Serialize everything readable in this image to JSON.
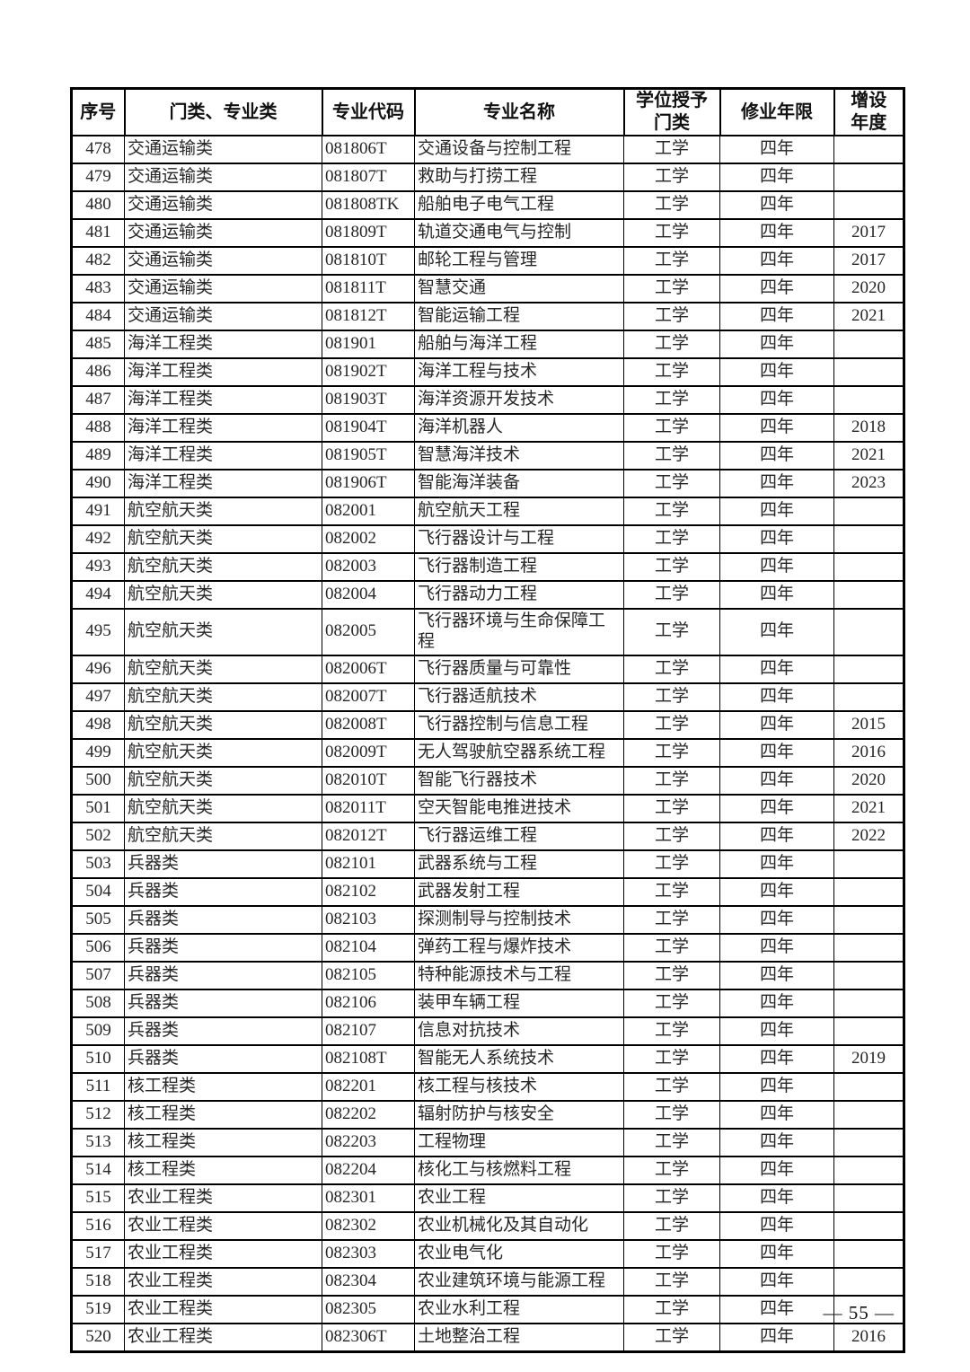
{
  "table": {
    "columns": [
      "序号",
      "门类、专业类",
      "专业代码",
      "专业名称",
      "学位授予\n门类",
      "修业年限",
      "增设\n年度"
    ],
    "rows": [
      [
        "478",
        "交通运输类",
        "081806T",
        "交通设备与控制工程",
        "工学",
        "四年",
        ""
      ],
      [
        "479",
        "交通运输类",
        "081807T",
        "救助与打捞工程",
        "工学",
        "四年",
        ""
      ],
      [
        "480",
        "交通运输类",
        "081808TK",
        "船舶电子电气工程",
        "工学",
        "四年",
        ""
      ],
      [
        "481",
        "交通运输类",
        "081809T",
        "轨道交通电气与控制",
        "工学",
        "四年",
        "2017"
      ],
      [
        "482",
        "交通运输类",
        "081810T",
        "邮轮工程与管理",
        "工学",
        "四年",
        "2017"
      ],
      [
        "483",
        "交通运输类",
        "081811T",
        "智慧交通",
        "工学",
        "四年",
        "2020"
      ],
      [
        "484",
        "交通运输类",
        "081812T",
        "智能运输工程",
        "工学",
        "四年",
        "2021"
      ],
      [
        "485",
        "海洋工程类",
        "081901",
        "船舶与海洋工程",
        "工学",
        "四年",
        ""
      ],
      [
        "486",
        "海洋工程类",
        "081902T",
        "海洋工程与技术",
        "工学",
        "四年",
        ""
      ],
      [
        "487",
        "海洋工程类",
        "081903T",
        "海洋资源开发技术",
        "工学",
        "四年",
        ""
      ],
      [
        "488",
        "海洋工程类",
        "081904T",
        "海洋机器人",
        "工学",
        "四年",
        "2018"
      ],
      [
        "489",
        "海洋工程类",
        "081905T",
        "智慧海洋技术",
        "工学",
        "四年",
        "2021"
      ],
      [
        "490",
        "海洋工程类",
        "081906T",
        "智能海洋装备",
        "工学",
        "四年",
        "2023"
      ],
      [
        "491",
        "航空航天类",
        "082001",
        "航空航天工程",
        "工学",
        "四年",
        ""
      ],
      [
        "492",
        "航空航天类",
        "082002",
        "飞行器设计与工程",
        "工学",
        "四年",
        ""
      ],
      [
        "493",
        "航空航天类",
        "082003",
        "飞行器制造工程",
        "工学",
        "四年",
        ""
      ],
      [
        "494",
        "航空航天类",
        "082004",
        "飞行器动力工程",
        "工学",
        "四年",
        ""
      ],
      [
        "495",
        "航空航天类",
        "082005",
        "飞行器环境与生命保障工程",
        "工学",
        "四年",
        ""
      ],
      [
        "496",
        "航空航天类",
        "082006T",
        "飞行器质量与可靠性",
        "工学",
        "四年",
        ""
      ],
      [
        "497",
        "航空航天类",
        "082007T",
        "飞行器适航技术",
        "工学",
        "四年",
        ""
      ],
      [
        "498",
        "航空航天类",
        "082008T",
        "飞行器控制与信息工程",
        "工学",
        "四年",
        "2015"
      ],
      [
        "499",
        "航空航天类",
        "082009T",
        "无人驾驶航空器系统工程",
        "工学",
        "四年",
        "2016"
      ],
      [
        "500",
        "航空航天类",
        "082010T",
        "智能飞行器技术",
        "工学",
        "四年",
        "2020"
      ],
      [
        "501",
        "航空航天类",
        "082011T",
        "空天智能电推进技术",
        "工学",
        "四年",
        "2021"
      ],
      [
        "502",
        "航空航天类",
        "082012T",
        "飞行器运维工程",
        "工学",
        "四年",
        "2022"
      ],
      [
        "503",
        "兵器类",
        "082101",
        "武器系统与工程",
        "工学",
        "四年",
        ""
      ],
      [
        "504",
        "兵器类",
        "082102",
        "武器发射工程",
        "工学",
        "四年",
        ""
      ],
      [
        "505",
        "兵器类",
        "082103",
        "探测制导与控制技术",
        "工学",
        "四年",
        ""
      ],
      [
        "506",
        "兵器类",
        "082104",
        "弹药工程与爆炸技术",
        "工学",
        "四年",
        ""
      ],
      [
        "507",
        "兵器类",
        "082105",
        "特种能源技术与工程",
        "工学",
        "四年",
        ""
      ],
      [
        "508",
        "兵器类",
        "082106",
        "装甲车辆工程",
        "工学",
        "四年",
        ""
      ],
      [
        "509",
        "兵器类",
        "082107",
        "信息对抗技术",
        "工学",
        "四年",
        ""
      ],
      [
        "510",
        "兵器类",
        "082108T",
        "智能无人系统技术",
        "工学",
        "四年",
        "2019"
      ],
      [
        "511",
        "核工程类",
        "082201",
        "核工程与核技术",
        "工学",
        "四年",
        ""
      ],
      [
        "512",
        "核工程类",
        "082202",
        "辐射防护与核安全",
        "工学",
        "四年",
        ""
      ],
      [
        "513",
        "核工程类",
        "082203",
        "工程物理",
        "工学",
        "四年",
        ""
      ],
      [
        "514",
        "核工程类",
        "082204",
        "核化工与核燃料工程",
        "工学",
        "四年",
        ""
      ],
      [
        "515",
        "农业工程类",
        "082301",
        "农业工程",
        "工学",
        "四年",
        ""
      ],
      [
        "516",
        "农业工程类",
        "082302",
        "农业机械化及其自动化",
        "工学",
        "四年",
        ""
      ],
      [
        "517",
        "农业工程类",
        "082303",
        "农业电气化",
        "工学",
        "四年",
        ""
      ],
      [
        "518",
        "农业工程类",
        "082304",
        "农业建筑环境与能源工程",
        "工学",
        "四年",
        ""
      ],
      [
        "519",
        "农业工程类",
        "082305",
        "农业水利工程",
        "工学",
        "四年",
        ""
      ],
      [
        "520",
        "农业工程类",
        "082306T",
        "土地整治工程",
        "工学",
        "四年",
        "2016"
      ]
    ]
  },
  "footer": {
    "page_number": "— 55 —"
  }
}
